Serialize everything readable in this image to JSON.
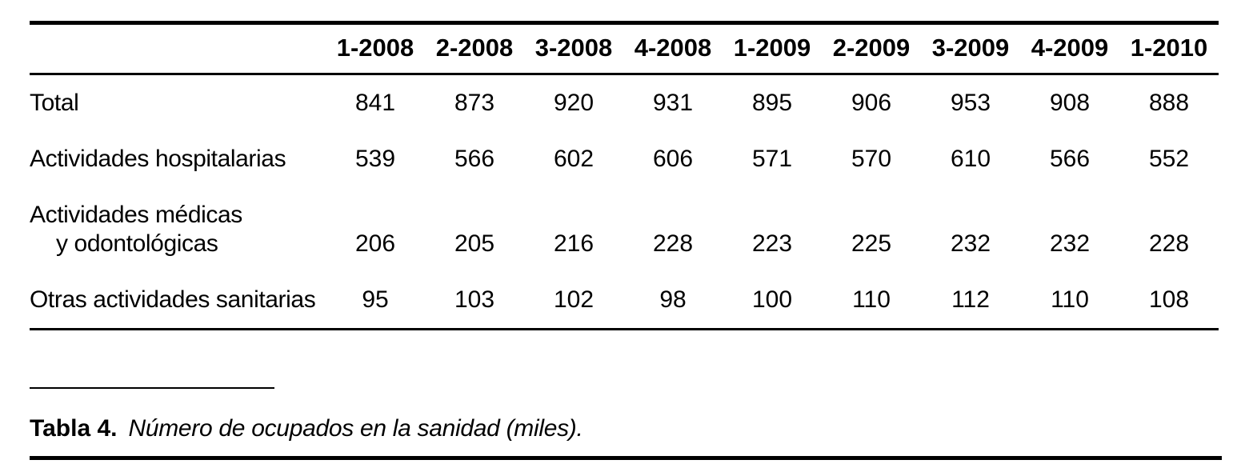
{
  "table": {
    "columns": [
      "1-2008",
      "2-2008",
      "3-2008",
      "4-2008",
      "1-2009",
      "2-2009",
      "3-2009",
      "4-2009",
      "1-2010"
    ],
    "rows": [
      {
        "label": "Total",
        "values": [
          841,
          873,
          920,
          931,
          895,
          906,
          953,
          908,
          888
        ]
      },
      {
        "label": "Actividades hospitalarias",
        "values": [
          539,
          566,
          602,
          606,
          571,
          570,
          610,
          566,
          552
        ]
      },
      {
        "label": "Actividades médicas",
        "label_line2": "y odontológicas",
        "values": [
          206,
          205,
          216,
          228,
          223,
          225,
          232,
          232,
          228
        ]
      },
      {
        "label": "Otras actividades sanitarias",
        "values": [
          95,
          103,
          102,
          98,
          100,
          110,
          112,
          110,
          108
        ]
      }
    ]
  },
  "caption": {
    "label": "Tabla 4.",
    "text": "Número de ocupados en la sanidad (miles)."
  }
}
